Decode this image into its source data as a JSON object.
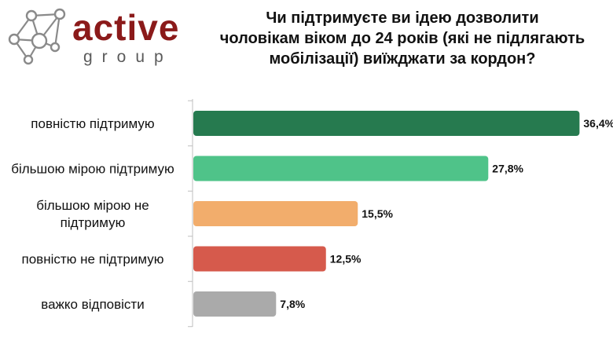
{
  "logo": {
    "word": "active",
    "sub": "group"
  },
  "chart_data": {
    "type": "bar",
    "orientation": "horizontal",
    "title_lines": [
      "Чи підтримуєте ви ідею дозволити",
      "чоловікам віком до 24 років (які не підлягають",
      "мобілізації) виїжджати за кордон?"
    ],
    "categories": [
      [
        "повністю підтримую"
      ],
      [
        "більшою мірою підтримую"
      ],
      [
        "більшою мірою не",
        "підтримую"
      ],
      [
        "повністю не підтримую"
      ],
      [
        "важко відповісти"
      ]
    ],
    "values": [
      36.4,
      27.8,
      15.5,
      12.5,
      7.8
    ],
    "value_labels": [
      "36,4%",
      "27,8%",
      "15,5%",
      "12,5%",
      "7,8%"
    ],
    "colors": [
      "#267a4f",
      "#4fc389",
      "#f2ad6c",
      "#d65a4c",
      "#aaaaaa"
    ],
    "xlim": [
      0,
      40
    ],
    "grid": false,
    "legend": "none"
  }
}
